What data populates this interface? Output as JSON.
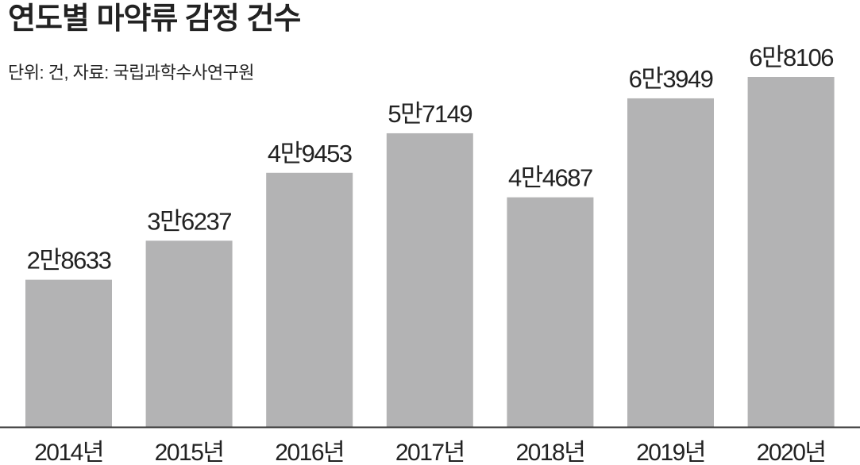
{
  "chart_data": {
    "type": "bar",
    "title": "연도별 마약류 감정 건수",
    "subtitle": "단위: 건, 자료: 국립과학수사연구원",
    "categories": [
      "2014년",
      "2015년",
      "2016년",
      "2017년",
      "2018년",
      "2019년",
      "2020년"
    ],
    "values": [
      28633,
      36237,
      49453,
      57149,
      44687,
      63949,
      68106
    ],
    "value_labels": [
      "2만8633",
      "3만6237",
      "4만9453",
      "5만7149",
      "4만4687",
      "6만3949",
      "6만8106"
    ],
    "color": "#b3b3b4"
  }
}
